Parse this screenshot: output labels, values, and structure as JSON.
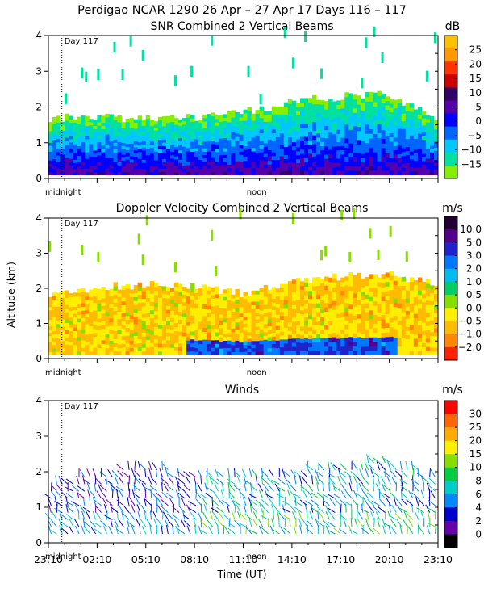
{
  "page": {
    "title": "Perdigao NCAR 1290  26 Apr – 27 Apr 17 Days 116 – 117",
    "ylabel": "Altitude (km)",
    "xlabel": "Time (UT)",
    "time_ticks": [
      "23:10",
      "02:10",
      "05:10",
      "08:10",
      "11:10",
      "14:10",
      "17:10",
      "20:10",
      "23:10"
    ],
    "midnight_label": "midnight",
    "noon_label": "noon",
    "day_label": "Day 117"
  },
  "chart_data": [
    {
      "type": "heatmap",
      "title": "SNR Combined 2 Vertical Beams",
      "units": "dB",
      "ylim": [
        0,
        4
      ],
      "yticks": [
        0,
        1,
        2,
        3,
        4
      ],
      "colorbar": {
        "labels": [
          "25",
          "20",
          "15",
          "10",
          "5",
          "0",
          "−5",
          "−10",
          "−15"
        ],
        "colors": [
          "#ffc000",
          "#ff9900",
          "#ff3300",
          "#cc0000",
          "#330066",
          "#5500aa",
          "#0000ff",
          "#0066ff",
          "#00c8ff",
          "#00e0a0",
          "#88ee00"
        ]
      },
      "time_hours": [
        0,
        3,
        6,
        9,
        12,
        15,
        18,
        21,
        24
      ],
      "top_altitude_km": [
        1.7,
        1.75,
        1.65,
        1.7,
        1.85,
        2.15,
        2.3,
        2.35,
        1.7
      ]
    },
    {
      "type": "heatmap",
      "title": "Doppler Velocity Combined 2 Vertical Beams",
      "units": "m/s",
      "ylim": [
        0,
        4
      ],
      "yticks": [
        0,
        1,
        2,
        3,
        4
      ],
      "colorbar": {
        "labels": [
          "10.0",
          "5.0",
          "3.0",
          "2.0",
          "1.0",
          "0.5",
          "0.0",
          "−0.5",
          "−1.0",
          "−2.0"
        ],
        "colors": [
          "#220033",
          "#550088",
          "#2222cc",
          "#0077ff",
          "#00bbee",
          "#00cc66",
          "#88dd00",
          "#ffee00",
          "#ffbb00",
          "#ff8800",
          "#ff2200"
        ]
      },
      "time_hours": [
        0,
        3,
        6,
        9,
        12,
        15,
        18,
        21,
        24
      ],
      "top_altitude_km": [
        1.8,
        2.05,
        2.1,
        2.1,
        1.85,
        2.2,
        2.35,
        2.4,
        2.1
      ]
    },
    {
      "type": "scatter",
      "title": "Winds",
      "units": "m/s",
      "ylim": [
        0,
        4
      ],
      "yticks": [
        0,
        1,
        2,
        3,
        4
      ],
      "colorbar": {
        "labels": [
          "30",
          "25",
          "20",
          "15",
          "10",
          "8",
          "6",
          "4",
          "2",
          "0"
        ],
        "colors": [
          "#ff0000",
          "#ff6600",
          "#ffaa00",
          "#ffee00",
          "#88dd00",
          "#00cc44",
          "#00cccc",
          "#0088ff",
          "#0000cc",
          "#6600aa",
          "#000000"
        ]
      },
      "time_hours": [
        0,
        3,
        6,
        9,
        12,
        15,
        18,
        21,
        24
      ],
      "top_altitude_km": [
        1.6,
        2.0,
        2.1,
        2.0,
        2.0,
        2.0,
        2.2,
        2.3,
        1.9
      ]
    }
  ]
}
